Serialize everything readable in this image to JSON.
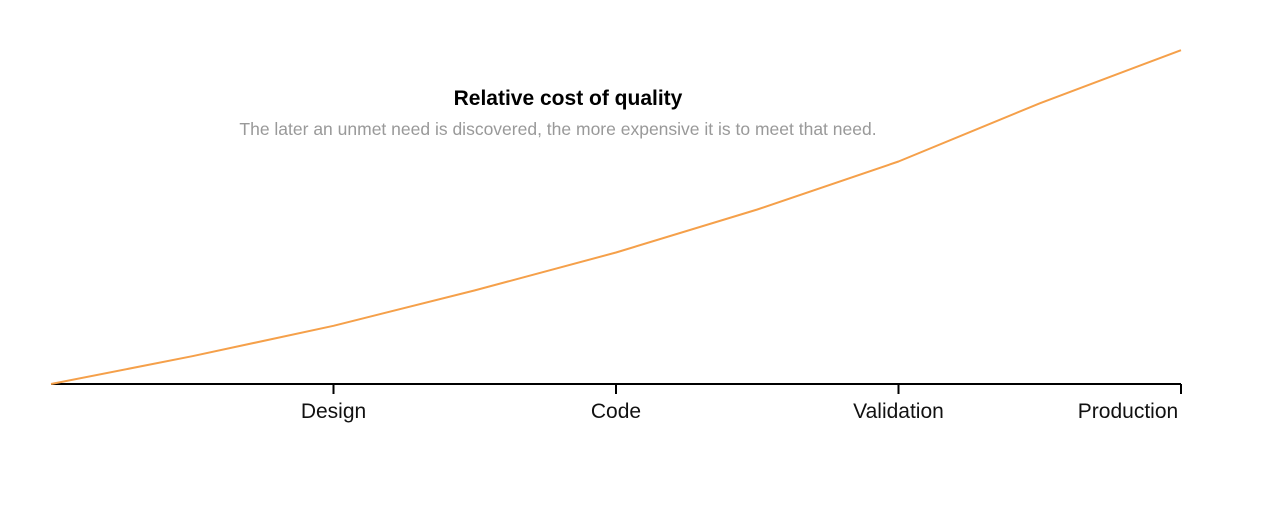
{
  "chart_data": {
    "type": "line",
    "title": "Relative cost of quality",
    "subtitle": "The later an unmet need is discovered, the more expensive it is to meet that need.",
    "categories": [
      "Design",
      "Code",
      "Validation",
      "Production"
    ],
    "x": [
      0,
      0.5,
      1,
      1.5,
      2,
      2.5,
      3,
      3.5,
      4
    ],
    "y": [
      0,
      5.5,
      11.5,
      18.5,
      26,
      34.5,
      44,
      55.5,
      66
    ],
    "xlim": [
      0,
      4
    ],
    "ylim": [
      0,
      70
    ],
    "xlabel": "",
    "ylabel": "",
    "grid": false,
    "line_color": "#f5a04a",
    "axis_color": "#000000"
  }
}
